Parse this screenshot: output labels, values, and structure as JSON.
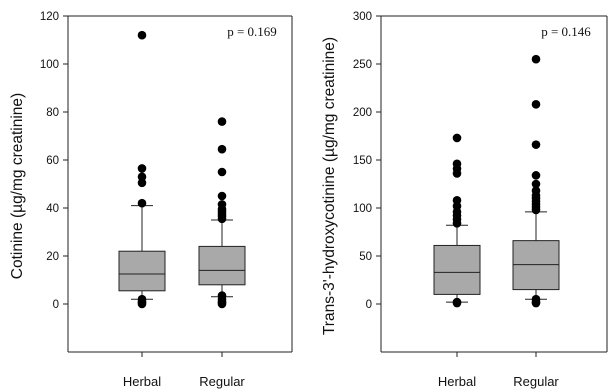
{
  "chart_data": [
    {
      "type": "box",
      "title": "",
      "xlabel": "",
      "ylabel": "Cotinine (µg/mg creatinine)",
      "ylim": [
        -20,
        120
      ],
      "yticks": [
        0,
        20,
        40,
        60,
        80,
        100,
        120
      ],
      "annotation": "p = 0.169",
      "annotation_position": "top-right",
      "grid": false,
      "categories": [
        "Herbal",
        "Regular"
      ],
      "box_color": "#a9a9a9",
      "boxes": [
        {
          "category": "Herbal",
          "whisker_low": 2,
          "q1": 5.5,
          "median": 12.5,
          "q3": 22,
          "whisker_high": 41,
          "outliers": [
            112,
            56.5,
            53,
            50.5,
            42,
            2,
            1,
            0.5,
            0
          ]
        },
        {
          "category": "Regular",
          "whisker_low": 3,
          "q1": 8,
          "median": 14,
          "q3": 24,
          "whisker_high": 35,
          "outliers": [
            76,
            64.5,
            55,
            45,
            41.5,
            39.5,
            38.5,
            37.5,
            36.5,
            35.5,
            3.5,
            2,
            1,
            0.5,
            0
          ]
        }
      ]
    },
    {
      "type": "box",
      "title": "",
      "xlabel": "",
      "ylabel": "Trans-3'-hydroxycotinine (µg/mg creatinine)",
      "ylim": [
        -50,
        300
      ],
      "yticks": [
        0,
        50,
        100,
        150,
        200,
        250,
        300
      ],
      "annotation": "p = 0.146",
      "annotation_position": "top-right",
      "grid": false,
      "categories": [
        "Herbal",
        "Regular"
      ],
      "box_color": "#a9a9a9",
      "boxes": [
        {
          "category": "Herbal",
          "whisker_low": 2,
          "q1": 10,
          "median": 33,
          "q3": 61,
          "whisker_high": 82,
          "outliers": [
            173,
            146,
            141,
            136,
            108,
            102,
            96,
            92,
            88,
            84,
            2,
            1
          ]
        },
        {
          "category": "Regular",
          "whisker_low": 5,
          "q1": 15,
          "median": 41,
          "q3": 66,
          "whisker_high": 96,
          "outliers": [
            255,
            208,
            166,
            134,
            125,
            118,
            113,
            110,
            107,
            104,
            101,
            98,
            5,
            2,
            1
          ]
        }
      ]
    }
  ]
}
